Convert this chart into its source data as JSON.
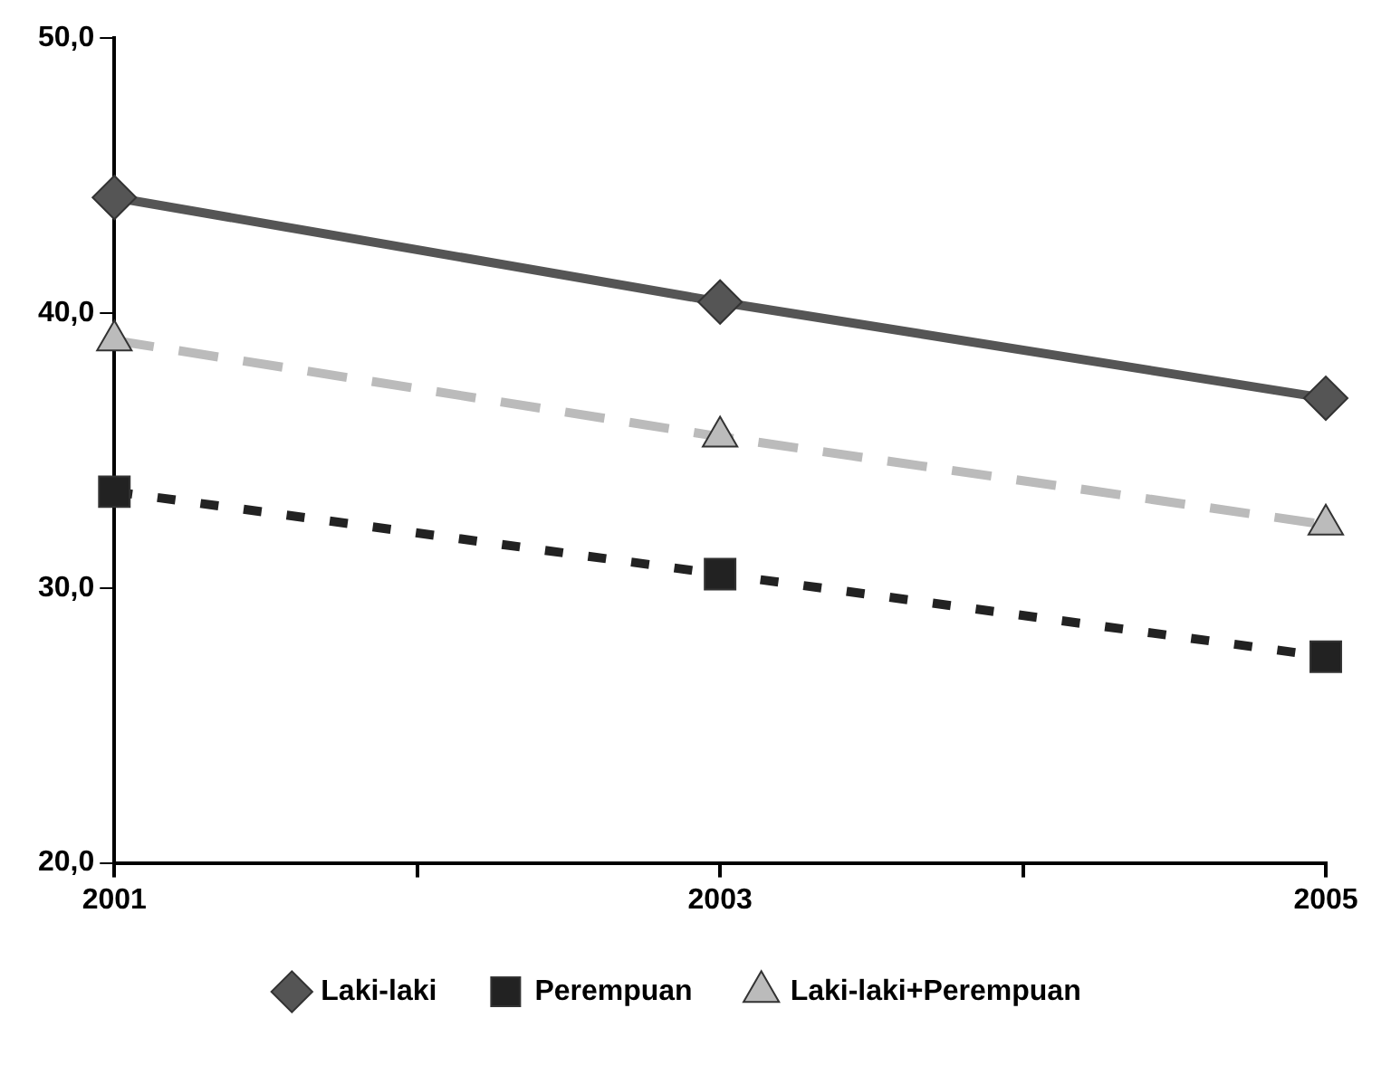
{
  "chart_data": {
    "type": "line",
    "x": [
      2001,
      2003,
      2005
    ],
    "xlim": [
      2001,
      2005
    ],
    "xticks": [
      2001,
      {
        "value": 2002,
        "label": null
      },
      2003,
      {
        "value": 2004,
        "label": null
      },
      2005
    ],
    "ylim": [
      20,
      50
    ],
    "yticks": [
      {
        "value": 20,
        "label": "20,0"
      },
      {
        "value": 30,
        "label": "30,0"
      },
      {
        "value": 40,
        "label": "40,0"
      },
      {
        "value": 50,
        "label": "50,0"
      }
    ],
    "grid": false,
    "legend": "bottom",
    "series": [
      {
        "name": "Laki-laki",
        "color": "#555555",
        "values": [
          44.2,
          40.4,
          36.9
        ],
        "marker": "diamond",
        "line_style": "solid"
      },
      {
        "name": "Perempuan",
        "color": "#222222",
        "values": [
          33.5,
          30.5,
          27.5
        ],
        "marker": "square",
        "line_style": "dotted"
      },
      {
        "name": "Laki-laki+Perempuan",
        "color": "#bbbbbb",
        "values": [
          39.0,
          35.5,
          32.3
        ],
        "marker": "triangle",
        "line_style": "dashed"
      }
    ]
  }
}
